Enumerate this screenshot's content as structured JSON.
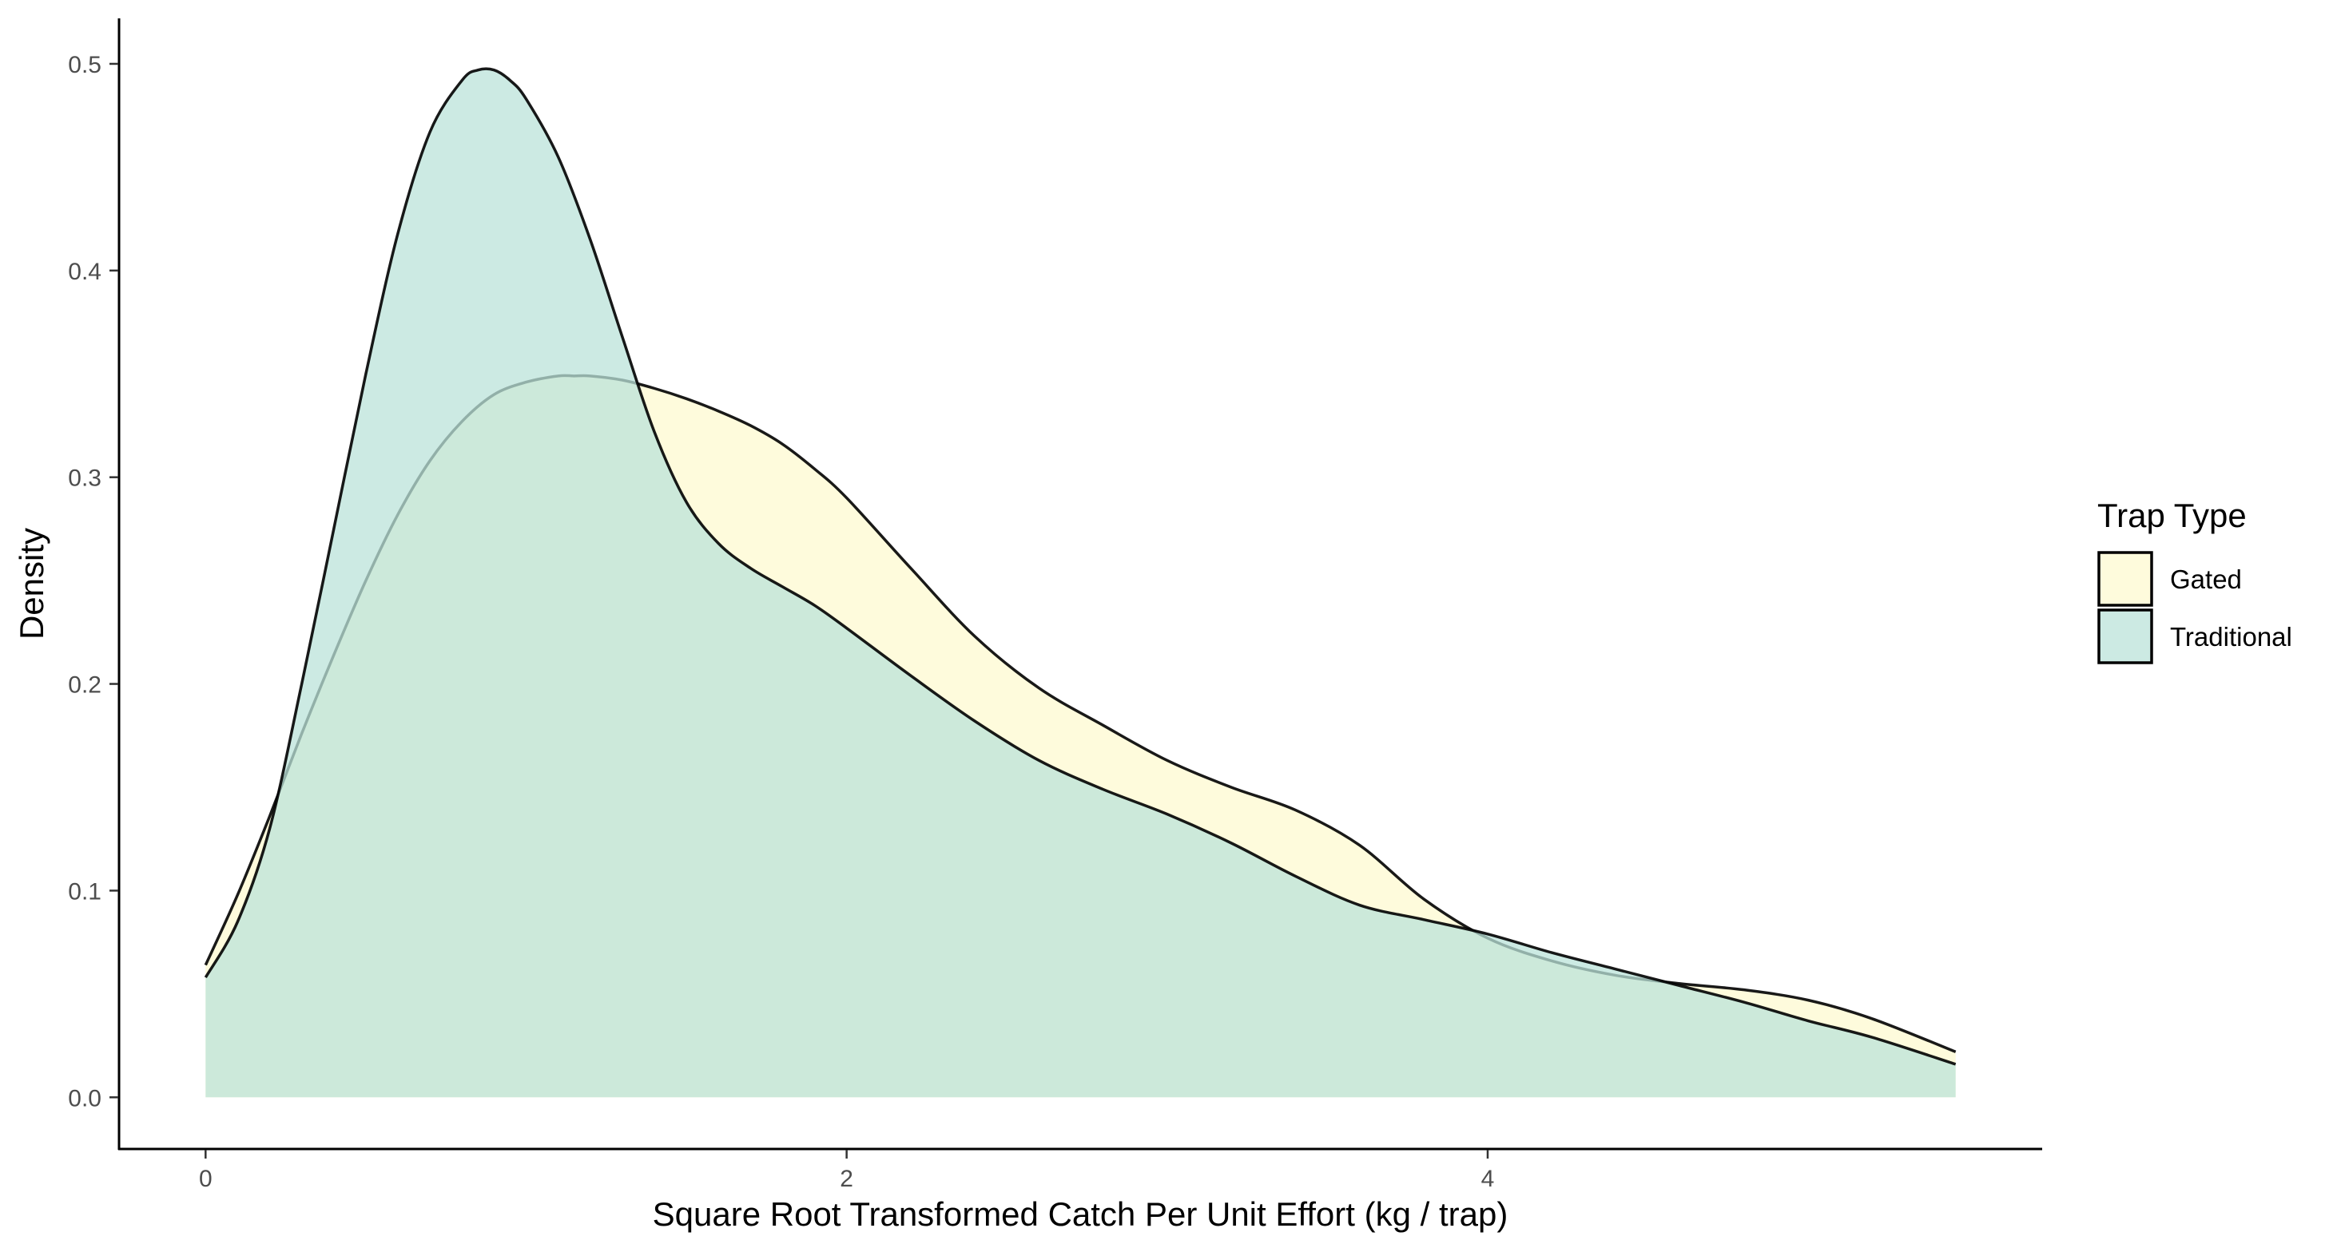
{
  "chart_data": {
    "type": "area",
    "chart_subtype": "density",
    "xlabel": "Square Root Transformed Catch Per Unit Effort (kg / trap)",
    "ylabel": "Density",
    "xlim": [
      -0.27,
      5.73
    ],
    "ylim": [
      -0.025,
      0.522
    ],
    "x_ticks": [
      0,
      2,
      4
    ],
    "x_tick_labels": [
      "0",
      "2",
      "4"
    ],
    "y_ticks": [
      0.0,
      0.1,
      0.2,
      0.3,
      0.4,
      0.5
    ],
    "y_tick_labels": [
      "0.0",
      "0.1",
      "0.2",
      "0.3",
      "0.4",
      "0.5"
    ],
    "grid": false,
    "legend": {
      "title": "Trap Type",
      "placement": "right",
      "entries": [
        "Gated",
        "Traditional"
      ]
    },
    "series": [
      {
        "name": "Gated",
        "color": "#fdfad0",
        "fill_opacity": 0.75,
        "x": [
          0.0,
          0.1,
          0.2,
          0.3,
          0.4,
          0.5,
          0.6,
          0.7,
          0.8,
          0.9,
          1.0,
          1.1,
          1.15,
          1.2,
          1.3,
          1.4,
          1.5,
          1.6,
          1.7,
          1.8,
          1.9,
          2.0,
          2.2,
          2.4,
          2.6,
          2.8,
          3.0,
          3.2,
          3.4,
          3.6,
          3.8,
          4.0,
          4.2,
          4.4,
          4.6,
          4.8,
          5.0,
          5.2,
          5.46
        ],
        "y": [
          0.064,
          0.098,
          0.136,
          0.176,
          0.214,
          0.25,
          0.282,
          0.308,
          0.327,
          0.34,
          0.346,
          0.349,
          0.349,
          0.349,
          0.347,
          0.343,
          0.338,
          0.332,
          0.325,
          0.316,
          0.304,
          0.29,
          0.256,
          0.223,
          0.198,
          0.18,
          0.163,
          0.15,
          0.139,
          0.122,
          0.096,
          0.077,
          0.066,
          0.059,
          0.055,
          0.052,
          0.047,
          0.038,
          0.022
        ]
      },
      {
        "name": "Traditional",
        "color": "#bbe3d9",
        "fill_opacity": 0.75,
        "x": [
          0.0,
          0.1,
          0.2,
          0.3,
          0.4,
          0.5,
          0.6,
          0.7,
          0.8,
          0.85,
          0.9,
          0.95,
          1.0,
          1.1,
          1.2,
          1.3,
          1.4,
          1.5,
          1.6,
          1.7,
          1.8,
          1.9,
          2.0,
          2.2,
          2.4,
          2.6,
          2.8,
          3.0,
          3.2,
          3.4,
          3.6,
          3.8,
          4.0,
          4.2,
          4.4,
          4.6,
          4.8,
          5.0,
          5.2,
          5.46
        ],
        "y": [
          0.058,
          0.085,
          0.13,
          0.2,
          0.275,
          0.35,
          0.418,
          0.467,
          0.492,
          0.497,
          0.497,
          0.492,
          0.483,
          0.455,
          0.415,
          0.368,
          0.322,
          0.288,
          0.268,
          0.256,
          0.247,
          0.238,
          0.227,
          0.204,
          0.182,
          0.163,
          0.149,
          0.137,
          0.123,
          0.107,
          0.093,
          0.086,
          0.079,
          0.07,
          0.062,
          0.054,
          0.046,
          0.037,
          0.029,
          0.016
        ]
      }
    ]
  }
}
